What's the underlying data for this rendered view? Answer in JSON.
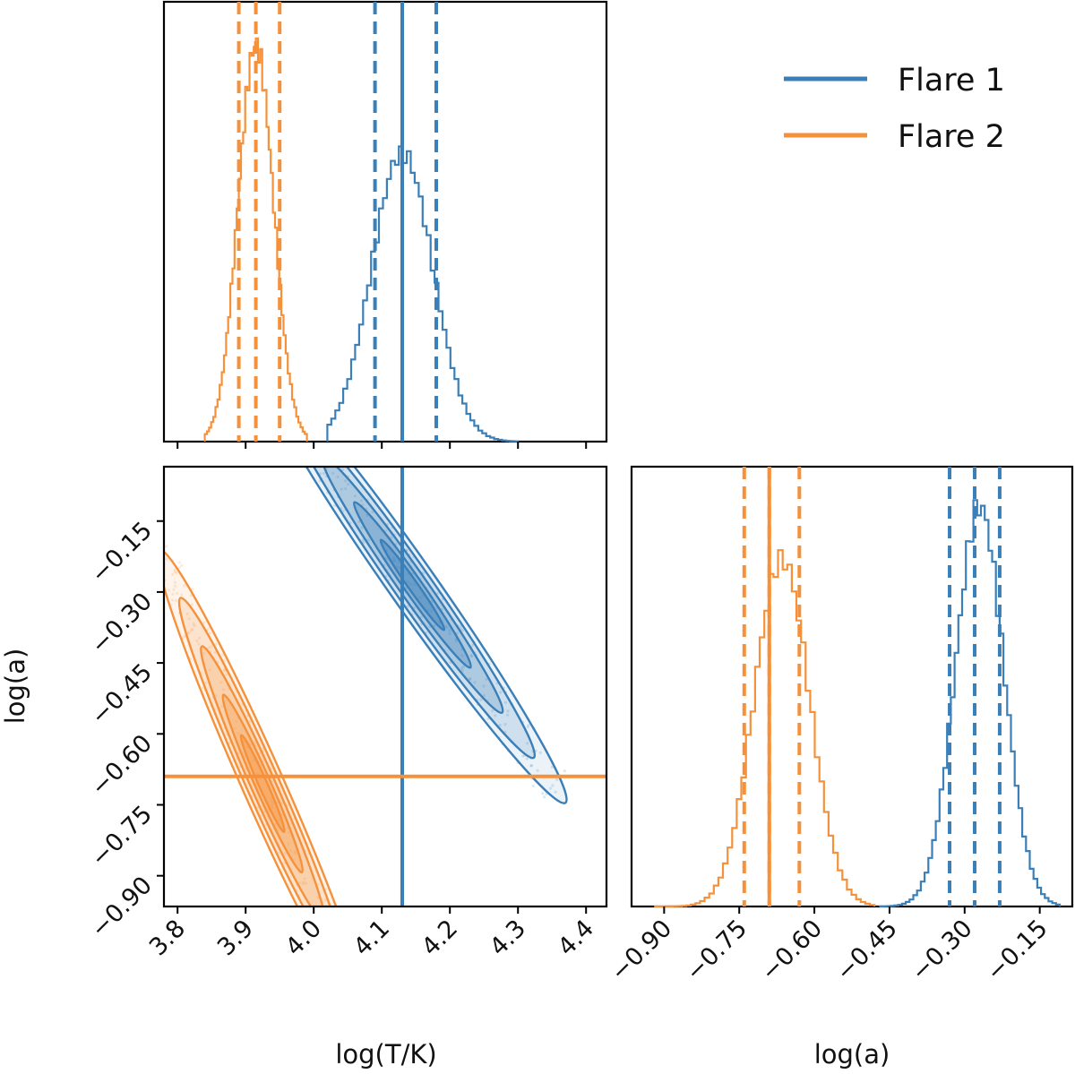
{
  "chart_data": {
    "type": "corner",
    "series": [
      {
        "name": "Flare 1",
        "color": "#3a7fb8",
        "logT": {
          "median": 4.13,
          "q16": 4.09,
          "q84": 4.18,
          "mu": 4.13,
          "sigma": 0.045,
          "range": [
            4.02,
            4.3
          ]
        },
        "loga": {
          "median": -0.28,
          "q16": -0.33,
          "q84": -0.23,
          "mu": -0.27,
          "sigma": 0.048,
          "range": [
            -0.47,
            -0.11
          ]
        },
        "truth": {
          "logT": 4.13
        }
      },
      {
        "name": "Flare 2",
        "color": "#f5913a",
        "logT": {
          "median": 3.915,
          "q16": 3.89,
          "q84": 3.95,
          "mu": 3.915,
          "sigma": 0.026,
          "range": [
            3.84,
            3.99
          ]
        },
        "loga": {
          "median": -0.69,
          "q16": -0.74,
          "q84": -0.63,
          "mu": -0.665,
          "sigma": 0.055,
          "range": [
            -0.92,
            -0.48
          ]
        },
        "truth": {
          "loga": -0.69
        }
      }
    ],
    "panels": {
      "top_left": {
        "xlim": [
          3.78,
          4.43
        ]
      },
      "bottom_left": {
        "xlim": [
          3.78,
          4.43
        ],
        "ylim": [
          -0.965,
          -0.035
        ],
        "xlabel": "log(T/K)",
        "ylabel": "log(a)",
        "xticks": [
          "3.8",
          "3.9",
          "4.0",
          "4.1",
          "4.2",
          "4.3",
          "4.4"
        ],
        "yticks": [
          "−0.15",
          "−0.30",
          "−0.45",
          "−0.60",
          "−0.75",
          "−0.90"
        ]
      },
      "bottom_right": {
        "xlim": [
          -0.965,
          -0.085
        ],
        "xlabel": "log(a)",
        "xticks": [
          "−0.90",
          "−0.75",
          "−0.60",
          "−0.45",
          "−0.30",
          "−0.15"
        ]
      }
    },
    "legend": {
      "location": "top-right",
      "entries": [
        "Flare 1",
        "Flare 2"
      ]
    }
  }
}
